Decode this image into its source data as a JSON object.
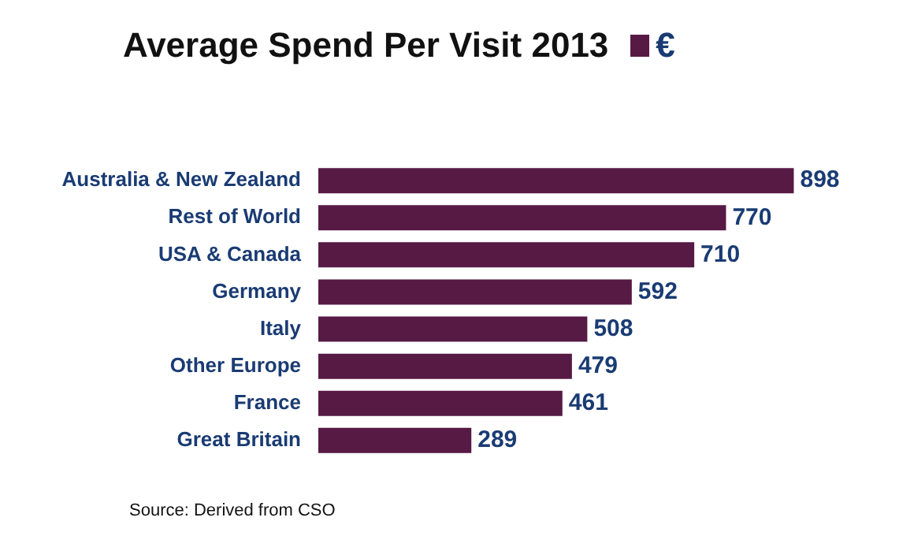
{
  "chart_data": {
    "type": "bar",
    "orientation": "horizontal",
    "title": "Average Spend Per Visit 2013",
    "legend": "top right",
    "tick_labels": "y",
    "data_labels": true,
    "categories": [
      "Australia & New Zealand",
      "Rest of World",
      "USA & Canada",
      "Germany",
      "Italy",
      "Other Europe",
      "France",
      "Great Britain"
    ],
    "series": [
      {
        "name": "€",
        "color": "#561a45",
        "values": [
          898,
          770,
          710,
          592,
          508,
          479,
          461,
          289
        ]
      }
    ],
    "annotations": [
      "Source: Derived from CSO"
    ]
  }
}
